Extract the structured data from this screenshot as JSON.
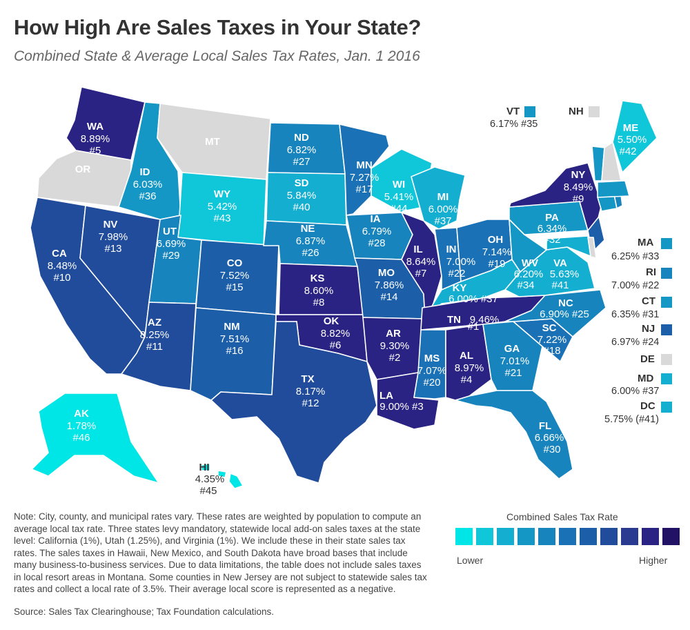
{
  "title": "How High Are Sales Taxes in Your State?",
  "subtitle": "Combined State & Average Local Sales Tax Rates, Jan. 1 2016",
  "colors": {
    "no_tax": "#d9d9d9",
    "scale": [
      "#00e5e5",
      "#10c6d9",
      "#13aed0",
      "#1597c6",
      "#1784bd",
      "#1a71b5",
      "#1d5ea8",
      "#214c9c",
      "#2a3a91",
      "#2a2383",
      "#221266"
    ]
  },
  "states": {
    "WA": {
      "abbr": "WA",
      "rate": "8.89%",
      "rank": "#5"
    },
    "OR": {
      "abbr": "OR"
    },
    "MT": {
      "abbr": "MT"
    },
    "ID": {
      "abbr": "ID",
      "rate": "6.03%",
      "rank": "#36"
    },
    "WY": {
      "abbr": "WY",
      "rate": "5.42%",
      "rank": "#43"
    },
    "ND": {
      "abbr": "ND",
      "rate": "6.82%",
      "rank": "#27"
    },
    "SD": {
      "abbr": "SD",
      "rate": "5.84%",
      "rank": "#40"
    },
    "MN": {
      "abbr": "MN",
      "rate": "7.27%",
      "rank": "#17"
    },
    "WI": {
      "abbr": "WI",
      "rate": "5.41%",
      "rank": "#44"
    },
    "MI": {
      "abbr": "MI",
      "rate": "6.00%",
      "rank": "#37"
    },
    "NY": {
      "abbr": "NY",
      "rate": "8.49%",
      "rank": "#9"
    },
    "ME": {
      "abbr": "ME",
      "rate": "5.50%",
      "rank": "#42"
    },
    "NV": {
      "abbr": "NV",
      "rate": "7.98%",
      "rank": "#13"
    },
    "UT": {
      "abbr": "UT",
      "rate": "6.69%",
      "rank": "#29"
    },
    "CO": {
      "abbr": "CO",
      "rate": "7.52%",
      "rank": "#15"
    },
    "NE": {
      "abbr": "NE",
      "rate": "6.87%",
      "rank": "#26"
    },
    "IA": {
      "abbr": "IA",
      "rate": "6.79%",
      "rank": "#28"
    },
    "IL": {
      "abbr": "IL",
      "rate": "8.64%",
      "rank": "#7"
    },
    "IN": {
      "abbr": "IN",
      "rate": "7.00%",
      "rank": "#22"
    },
    "OH": {
      "abbr": "OH",
      "rate": "7.14%",
      "rank": "#19"
    },
    "PA": {
      "abbr": "PA",
      "rate": "6.34%",
      "rank": "#32"
    },
    "CA": {
      "abbr": "CA",
      "rate": "8.48%",
      "rank": "#10"
    },
    "KS": {
      "abbr": "KS",
      "rate": "8.60%",
      "rank": "#8"
    },
    "MO": {
      "abbr": "MO",
      "rate": "7.86%",
      "rank": "#14"
    },
    "KY": {
      "abbr": "KY",
      "rate": "6.00% #37"
    },
    "WV": {
      "abbr": "WV",
      "rate": "6.20%",
      "rank": "#34"
    },
    "VA": {
      "abbr": "VA",
      "rate": "5.63%",
      "rank": "#41"
    },
    "AZ": {
      "abbr": "AZ",
      "rate": "8.25%",
      "rank": "#11"
    },
    "NM": {
      "abbr": "NM",
      "rate": "7.51%",
      "rank": "#16"
    },
    "OK": {
      "abbr": "OK",
      "rate": "8.82%",
      "rank": "#6"
    },
    "AR": {
      "abbr": "AR",
      "rate": "9.30%",
      "rank": "#2"
    },
    "TN": {
      "abbr": "TN",
      "rate": "9.46%",
      "rank": "#1"
    },
    "NC": {
      "abbr": "NC",
      "rate": "6.90% #25"
    },
    "SC": {
      "abbr": "SC",
      "rate": "7.22%",
      "rank": "#18"
    },
    "GA": {
      "abbr": "GA",
      "rate": "7.01%",
      "rank": "#21"
    },
    "AL": {
      "abbr": "AL",
      "rate": "8.97%",
      "rank": "#4"
    },
    "MS": {
      "abbr": "MS",
      "rate": "7.07%",
      "rank": "#20"
    },
    "LA": {
      "abbr": "LA",
      "rate": "9.00% #3"
    },
    "TX": {
      "abbr": "TX",
      "rate": "8.17%",
      "rank": "#12"
    },
    "FL": {
      "abbr": "FL",
      "rate": "6.66%",
      "rank": "#30"
    },
    "AK": {
      "abbr": "AK",
      "rate": "1.78%",
      "rank": "#46"
    },
    "HI": {
      "abbr": "HI",
      "rate": "4.35%",
      "rank": "#45"
    }
  },
  "side": {
    "VT": {
      "abbr": "VT",
      "rate": "6.17% #35"
    },
    "NH": {
      "abbr": "NH"
    },
    "MA": {
      "abbr": "MA",
      "rate": "6.25% #33"
    },
    "RI": {
      "abbr": "RI",
      "rate": "7.00% #22"
    },
    "CT": {
      "abbr": "CT",
      "rate": "6.35% #31"
    },
    "NJ": {
      "abbr": "NJ",
      "rate": "6.97% #24"
    },
    "DE": {
      "abbr": "DE"
    },
    "MD": {
      "abbr": "MD",
      "rate": "6.00% #37"
    },
    "DC": {
      "abbr": "DC",
      "rate": "5.75% (#41)"
    }
  },
  "legend": {
    "title": "Combined Sales Tax Rate",
    "low": "Lower",
    "high": "Higher"
  },
  "note": "Note: City, county, and municipal rates vary. These rates are weighted by population to compute an average local tax rate. Three states levy mandatory, statewide local add-on sales taxes at the state level: California (1%), Utah (1.25%), and Virginia (1%). We include these in their state sales tax rates. The sales taxes in Hawaii, New Mexico, and South Dakota have broad bases that include many business-to-business services. Due to data limitations, the table does not include sales taxes in local resort areas in Montana. Some counties in New Jersey are not subject to statewide sales tax rates and collect a local rate of 3.5%. Their average local score is represented as a negative.",
  "source": "Source: Sales Tax Clearinghouse; Tax Foundation calculations."
}
